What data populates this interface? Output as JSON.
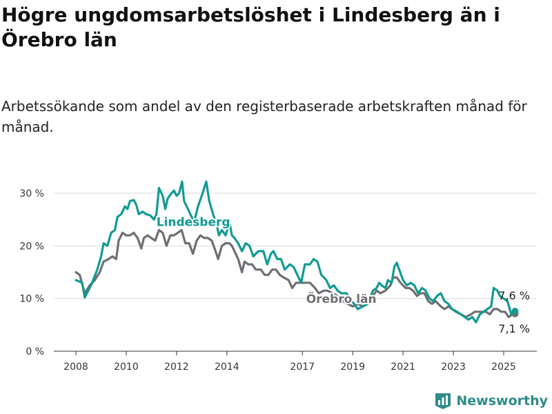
{
  "header": {
    "title": "Högre ungdomsarbetslöshet i Lindesberg än i Örebro län",
    "subtitle": "Arbetssökande som andel av den registerbaserade arbetskraften månad för månad."
  },
  "brand": {
    "name": "Newsworthy",
    "icon": "newsworthy-logo-icon",
    "color": "#2e8b88"
  },
  "chart_data": {
    "type": "line",
    "title": "Högre ungdomsarbetslöshet i Lindesberg än i Örebro län",
    "subtitle": "Arbetssökande som andel av den registerbaserade arbetskraften månad för månad.",
    "x_ticks": [
      "2008",
      "2010",
      "2012",
      "2014",
      "2017",
      "2019",
      "2021",
      "2023",
      "2025"
    ],
    "y_ticks": [
      "0 %",
      "10 %",
      "20 %",
      "30 %"
    ],
    "ylim": [
      0,
      33
    ],
    "xlim": [
      2007.6,
      2026.3
    ],
    "grid": "horizontal",
    "series": [
      {
        "name": "Lindesberg",
        "color": "#129a93",
        "end_label": "7,6 %",
        "points": [
          [
            2008.0,
            13.5
          ],
          [
            2008.25,
            13.0
          ],
          [
            2008.35,
            10.2
          ],
          [
            2008.6,
            12.5
          ],
          [
            2008.85,
            15.5
          ],
          [
            2009.0,
            18.0
          ],
          [
            2009.1,
            20.5
          ],
          [
            2009.25,
            20.0
          ],
          [
            2009.4,
            22.5
          ],
          [
            2009.55,
            23.0
          ],
          [
            2009.65,
            25.5
          ],
          [
            2009.8,
            26.0
          ],
          [
            2009.95,
            27.5
          ],
          [
            2010.05,
            27.0
          ],
          [
            2010.15,
            28.5
          ],
          [
            2010.3,
            28.7
          ],
          [
            2010.4,
            27.8
          ],
          [
            2010.5,
            26.0
          ],
          [
            2010.65,
            26.5
          ],
          [
            2010.8,
            26.0
          ],
          [
            2010.95,
            25.8
          ],
          [
            2011.1,
            25.0
          ],
          [
            2011.2,
            26.0
          ],
          [
            2011.3,
            31.0
          ],
          [
            2011.45,
            29.5
          ],
          [
            2011.55,
            27.0
          ],
          [
            2011.65,
            29.0
          ],
          [
            2011.8,
            30.0
          ],
          [
            2011.9,
            30.5
          ],
          [
            2012.0,
            29.5
          ],
          [
            2012.1,
            30.0
          ],
          [
            2012.22,
            32.2
          ],
          [
            2012.3,
            28.5
          ],
          [
            2012.4,
            27.5
          ],
          [
            2012.55,
            26.0
          ],
          [
            2012.7,
            24.5
          ],
          [
            2012.85,
            27.5
          ],
          [
            2013.0,
            29.5
          ],
          [
            2013.1,
            31.0
          ],
          [
            2013.18,
            32.2
          ],
          [
            2013.3,
            28.5
          ],
          [
            2013.45,
            26.0
          ],
          [
            2013.6,
            24.0
          ],
          [
            2013.68,
            22.0
          ],
          [
            2013.8,
            23.0
          ],
          [
            2013.95,
            22.0
          ],
          [
            2014.1,
            24.5
          ],
          [
            2014.2,
            22.0
          ],
          [
            2014.3,
            21.5
          ],
          [
            2014.45,
            20.5
          ],
          [
            2014.6,
            19.0
          ],
          [
            2014.75,
            20.5
          ],
          [
            2014.9,
            20.0
          ],
          [
            2015.05,
            18.0
          ],
          [
            2015.25,
            19.0
          ],
          [
            2015.45,
            19.0
          ],
          [
            2015.6,
            16.5
          ],
          [
            2015.75,
            18.5
          ],
          [
            2015.85,
            19.0
          ],
          [
            2016.0,
            17.5
          ],
          [
            2016.15,
            17.5
          ],
          [
            2016.3,
            15.5
          ],
          [
            2016.5,
            16.5
          ],
          [
            2016.65,
            16.0
          ],
          [
            2016.8,
            14.5
          ],
          [
            2016.95,
            13.0
          ],
          [
            2017.1,
            16.5
          ],
          [
            2017.3,
            16.5
          ],
          [
            2017.45,
            17.5
          ],
          [
            2017.6,
            17.0
          ],
          [
            2017.75,
            14.5
          ],
          [
            2017.95,
            13.5
          ],
          [
            2018.1,
            12.0
          ],
          [
            2018.25,
            12.5
          ],
          [
            2018.4,
            11.5
          ],
          [
            2018.55,
            11.0
          ],
          [
            2018.75,
            11.0
          ],
          [
            2018.9,
            10.0
          ],
          [
            2019.05,
            9.0
          ],
          [
            2019.2,
            8.0
          ],
          [
            2019.4,
            8.5
          ],
          [
            2019.6,
            9.0
          ],
          [
            2019.8,
            11.5
          ],
          [
            2019.95,
            12.0
          ],
          [
            2020.05,
            13.0
          ],
          [
            2020.15,
            12.5
          ],
          [
            2020.3,
            12.0
          ],
          [
            2020.4,
            13.5
          ],
          [
            2020.55,
            13.0
          ],
          [
            2020.65,
            16.0
          ],
          [
            2020.75,
            16.8
          ],
          [
            2020.85,
            15.5
          ],
          [
            2021.0,
            13.5
          ],
          [
            2021.15,
            12.5
          ],
          [
            2021.3,
            13.0
          ],
          [
            2021.45,
            12.5
          ],
          [
            2021.6,
            11.0
          ],
          [
            2021.75,
            12.0
          ],
          [
            2021.9,
            11.5
          ],
          [
            2022.05,
            10.0
          ],
          [
            2022.2,
            9.5
          ],
          [
            2022.35,
            10.5
          ],
          [
            2022.5,
            11.0
          ],
          [
            2022.65,
            9.5
          ],
          [
            2022.8,
            9.0
          ],
          [
            2022.95,
            8.0
          ],
          [
            2023.15,
            7.5
          ],
          [
            2023.3,
            7.0
          ],
          [
            2023.45,
            6.5
          ],
          [
            2023.6,
            6.0
          ],
          [
            2023.75,
            6.5
          ],
          [
            2023.9,
            5.5
          ],
          [
            2024.05,
            7.0
          ],
          [
            2024.2,
            7.5
          ],
          [
            2024.35,
            8.0
          ],
          [
            2024.5,
            8.5
          ],
          [
            2024.6,
            12.0
          ],
          [
            2024.75,
            11.5
          ],
          [
            2024.85,
            10.5
          ],
          [
            2025.0,
            10.0
          ],
          [
            2025.15,
            9.5
          ],
          [
            2025.3,
            7.0
          ],
          [
            2025.45,
            7.6
          ]
        ]
      },
      {
        "name": "Örebro län",
        "color": "#6e6e73",
        "end_label": "7,1 %",
        "points": [
          [
            2008.0,
            15.0
          ],
          [
            2008.15,
            14.5
          ],
          [
            2008.35,
            11.0
          ],
          [
            2008.55,
            12.5
          ],
          [
            2008.75,
            13.5
          ],
          [
            2008.95,
            15.0
          ],
          [
            2009.1,
            17.0
          ],
          [
            2009.3,
            17.5
          ],
          [
            2009.45,
            18.0
          ],
          [
            2009.6,
            17.5
          ],
          [
            2009.7,
            21.0
          ],
          [
            2009.85,
            22.5
          ],
          [
            2010.0,
            22.0
          ],
          [
            2010.15,
            22.0
          ],
          [
            2010.3,
            22.5
          ],
          [
            2010.45,
            21.5
          ],
          [
            2010.6,
            19.5
          ],
          [
            2010.7,
            21.5
          ],
          [
            2010.85,
            22.0
          ],
          [
            2011.0,
            21.5
          ],
          [
            2011.15,
            21.0
          ],
          [
            2011.3,
            23.0
          ],
          [
            2011.45,
            22.5
          ],
          [
            2011.6,
            20.0
          ],
          [
            2011.75,
            22.0
          ],
          [
            2011.9,
            22.0
          ],
          [
            2012.05,
            22.5
          ],
          [
            2012.2,
            23.0
          ],
          [
            2012.35,
            20.5
          ],
          [
            2012.5,
            20.5
          ],
          [
            2012.65,
            18.5
          ],
          [
            2012.8,
            21.0
          ],
          [
            2012.95,
            22.0
          ],
          [
            2013.1,
            21.5
          ],
          [
            2013.25,
            21.5
          ],
          [
            2013.4,
            21.0
          ],
          [
            2013.55,
            19.0
          ],
          [
            2013.65,
            17.5
          ],
          [
            2013.8,
            20.0
          ],
          [
            2013.95,
            20.5
          ],
          [
            2014.1,
            20.5
          ],
          [
            2014.2,
            20.0
          ],
          [
            2014.35,
            18.5
          ],
          [
            2014.45,
            17.5
          ],
          [
            2014.6,
            15.0
          ],
          [
            2014.7,
            17.0
          ],
          [
            2014.85,
            16.5
          ],
          [
            2015.0,
            16.5
          ],
          [
            2015.15,
            15.5
          ],
          [
            2015.35,
            15.5
          ],
          [
            2015.5,
            14.5
          ],
          [
            2015.65,
            14.5
          ],
          [
            2015.8,
            15.5
          ],
          [
            2015.95,
            15.5
          ],
          [
            2016.1,
            14.5
          ],
          [
            2016.25,
            14.0
          ],
          [
            2016.45,
            13.5
          ],
          [
            2016.6,
            12.0
          ],
          [
            2016.75,
            13.0
          ],
          [
            2016.95,
            13.0
          ],
          [
            2017.15,
            13.0
          ],
          [
            2017.3,
            13.0
          ],
          [
            2017.5,
            12.0
          ],
          [
            2017.65,
            11.0
          ],
          [
            2017.85,
            11.5
          ],
          [
            2018.0,
            11.5
          ],
          [
            2018.2,
            11.0
          ],
          [
            2018.4,
            10.5
          ],
          [
            2018.6,
            9.5
          ],
          [
            2018.8,
            9.0
          ],
          [
            2019.0,
            8.5
          ],
          [
            2019.2,
            9.0
          ],
          [
            2019.4,
            8.5
          ],
          [
            2019.6,
            9.0
          ],
          [
            2019.8,
            10.5
          ],
          [
            2019.95,
            11.5
          ],
          [
            2020.1,
            11.0
          ],
          [
            2020.3,
            11.5
          ],
          [
            2020.5,
            12.5
          ],
          [
            2020.6,
            14.0
          ],
          [
            2020.75,
            14.0
          ],
          [
            2020.9,
            13.0
          ],
          [
            2021.1,
            12.0
          ],
          [
            2021.25,
            12.0
          ],
          [
            2021.4,
            11.5
          ],
          [
            2021.55,
            10.5
          ],
          [
            2021.7,
            11.0
          ],
          [
            2021.85,
            11.0
          ],
          [
            2022.0,
            9.5
          ],
          [
            2022.15,
            9.0
          ],
          [
            2022.3,
            9.5
          ],
          [
            2022.5,
            8.5
          ],
          [
            2022.65,
            8.0
          ],
          [
            2022.8,
            8.5
          ],
          [
            2022.95,
            8.0
          ],
          [
            2023.1,
            7.5
          ],
          [
            2023.3,
            7.0
          ],
          [
            2023.5,
            6.5
          ],
          [
            2023.7,
            7.0
          ],
          [
            2023.85,
            7.5
          ],
          [
            2024.0,
            7.5
          ],
          [
            2024.15,
            7.5
          ],
          [
            2024.3,
            7.5
          ],
          [
            2024.45,
            7.0
          ],
          [
            2024.6,
            8.0
          ],
          [
            2024.75,
            8.0
          ],
          [
            2024.9,
            7.5
          ],
          [
            2025.05,
            7.5
          ],
          [
            2025.2,
            6.5
          ],
          [
            2025.35,
            7.0
          ],
          [
            2025.45,
            7.1
          ]
        ]
      }
    ]
  }
}
